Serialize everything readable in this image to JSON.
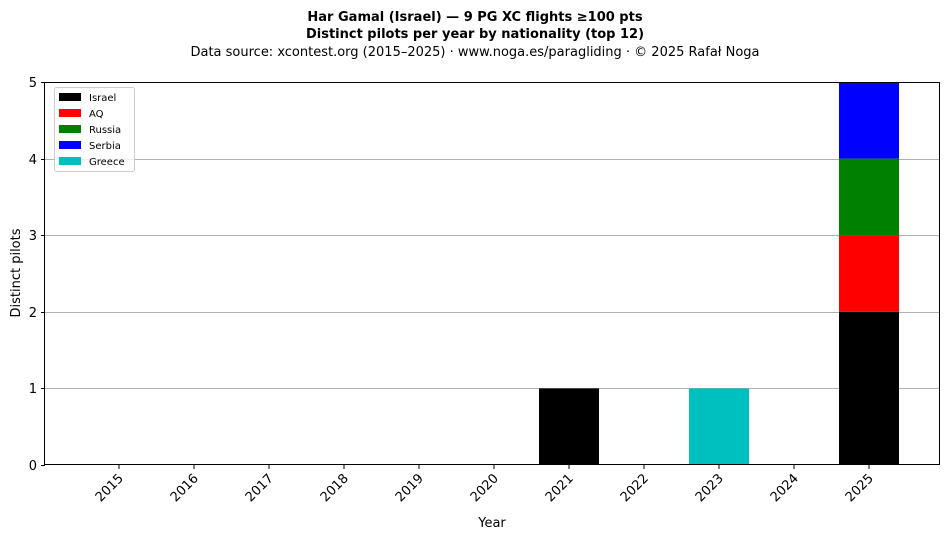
{
  "chart_data": {
    "type": "bar",
    "stacked": true,
    "title": "Har Gamal (Israel)  —  9 PG XC flights ≥100 pts",
    "subtitle": "Distinct pilots per year by nationality (top 12)",
    "source": "Data source: xcontest.org (2015–2025)  ·  www.noga.es/paragliding  ·  © 2025 Rafał Noga",
    "xlabel": "Year",
    "ylabel": "Distinct pilots",
    "categories": [
      "2015",
      "2016",
      "2017",
      "2018",
      "2019",
      "2020",
      "2021",
      "2022",
      "2023",
      "2024",
      "2025"
    ],
    "ylim": [
      0,
      5
    ],
    "yticks": [
      0,
      1,
      2,
      3,
      4,
      5
    ],
    "grid": "y",
    "legend_position": "top-left",
    "series": [
      {
        "name": "Israel",
        "color": "#000000",
        "values": [
          0,
          0,
          0,
          0,
          0,
          0,
          1,
          0,
          0,
          0,
          2
        ]
      },
      {
        "name": "AQ",
        "color": "#ff0000",
        "values": [
          0,
          0,
          0,
          0,
          0,
          0,
          0,
          0,
          0,
          0,
          1
        ]
      },
      {
        "name": "Russia",
        "color": "#008000",
        "values": [
          0,
          0,
          0,
          0,
          0,
          0,
          0,
          0,
          0,
          0,
          1
        ]
      },
      {
        "name": "Serbia",
        "color": "#0000ff",
        "values": [
          0,
          0,
          0,
          0,
          0,
          0,
          0,
          0,
          0,
          0,
          1
        ]
      },
      {
        "name": "Greece",
        "color": "#00bfbf",
        "values": [
          0,
          0,
          0,
          0,
          0,
          0,
          0,
          0,
          1,
          0,
          0
        ]
      }
    ]
  }
}
